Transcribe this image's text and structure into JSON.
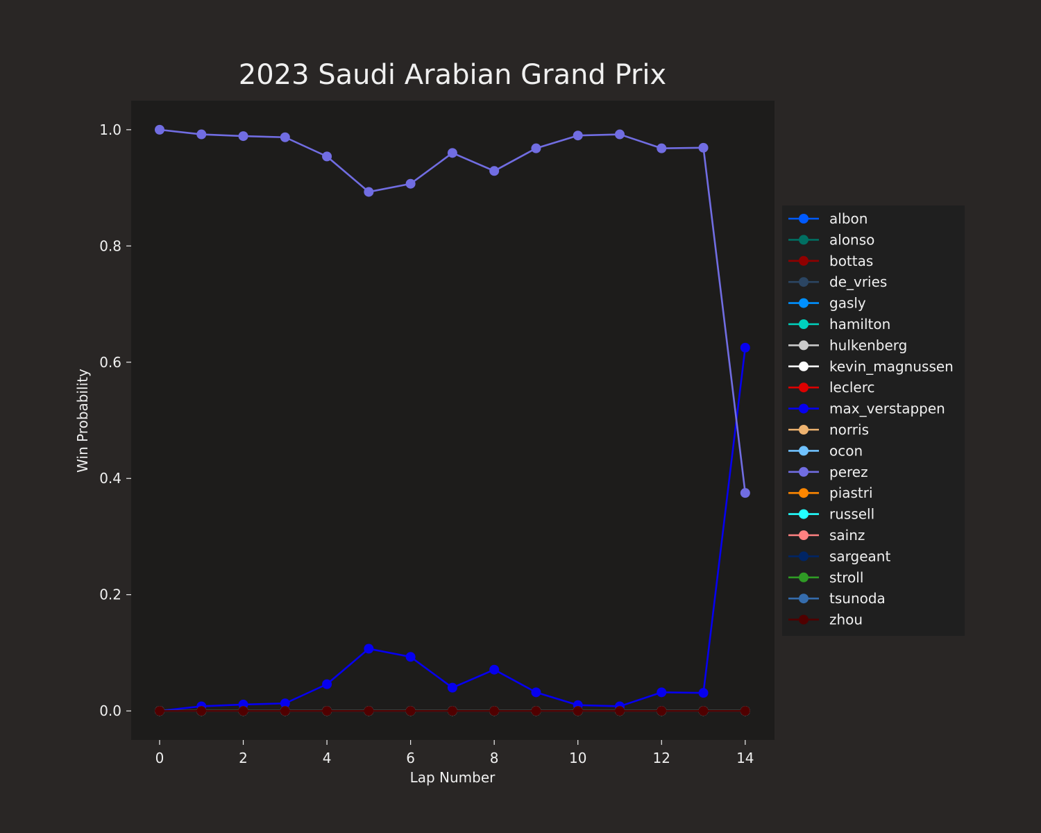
{
  "chart_data": {
    "type": "line",
    "title": "2023 Saudi Arabian Grand Prix",
    "xlabel": "Lap Number",
    "ylabel": "Win Probability",
    "xlim": [
      -0.68,
      14.7
    ],
    "ylim": [
      -0.05,
      1.05
    ],
    "xticks": [
      0,
      2,
      4,
      6,
      8,
      10,
      12,
      14
    ],
    "xtick_labels": [
      "0",
      "2",
      "4",
      "6",
      "8",
      "10",
      "12",
      "14"
    ],
    "yticks": [
      0.0,
      0.2,
      0.4,
      0.6,
      0.8,
      1.0
    ],
    "ytick_labels": [
      "0.0",
      "0.2",
      "0.4",
      "0.6",
      "0.8",
      "1.0"
    ],
    "grid": false,
    "legend_position": "right",
    "colors": {
      "figure_background": "#292625",
      "plot_background": "#1d1c1b",
      "legend_background": "#1f1f1f",
      "text": "#f0f0f0"
    },
    "x": [
      0,
      1,
      2,
      3,
      4,
      5,
      6,
      7,
      8,
      9,
      10,
      11,
      12,
      13,
      14
    ],
    "series": [
      {
        "name": "albon",
        "color": "#005aff",
        "values": [
          0,
          0,
          0,
          0,
          0,
          0,
          0,
          0,
          0,
          0,
          0,
          0,
          0,
          0,
          0
        ]
      },
      {
        "name": "alonso",
        "color": "#006f62",
        "values": [
          0,
          0,
          0,
          0,
          0,
          0,
          0,
          0,
          0,
          0,
          0,
          0,
          0,
          0,
          0
        ]
      },
      {
        "name": "bottas",
        "color": "#900000",
        "values": [
          0,
          0,
          0,
          0,
          0,
          0,
          0,
          0,
          0,
          0,
          0,
          0,
          0,
          0,
          0
        ]
      },
      {
        "name": "de_vries",
        "color": "#2b4562",
        "values": [
          0,
          0,
          0,
          0,
          0,
          0,
          0,
          0,
          0,
          0,
          0,
          0,
          0,
          0,
          0
        ]
      },
      {
        "name": "gasly",
        "color": "#0090ff",
        "values": [
          0,
          0,
          0,
          0,
          0,
          0,
          0,
          0,
          0,
          0,
          0,
          0,
          0,
          0,
          0
        ]
      },
      {
        "name": "hamilton",
        "color": "#00d2be",
        "values": [
          0,
          0,
          0,
          0,
          0,
          0,
          0,
          0,
          0,
          0,
          0,
          0,
          0,
          0,
          0
        ]
      },
      {
        "name": "hulkenberg",
        "color": "#cacaca",
        "values": [
          0,
          0,
          0,
          0,
          0,
          0,
          0,
          0,
          0,
          0,
          0,
          0,
          0,
          0,
          0
        ]
      },
      {
        "name": "kevin_magnussen",
        "color": "#ffffff",
        "values": [
          0,
          0,
          0,
          0,
          0,
          0,
          0,
          0,
          0,
          0,
          0,
          0,
          0,
          0,
          0
        ]
      },
      {
        "name": "leclerc",
        "color": "#dc0000",
        "values": [
          0,
          0,
          0,
          0,
          0,
          0,
          0,
          0,
          0,
          0,
          0,
          0,
          0,
          0,
          0
        ]
      },
      {
        "name": "max_verstappen",
        "color": "#0600ef",
        "values": [
          0,
          0.008,
          0.011,
          0.013,
          0.046,
          0.107,
          0.093,
          0.04,
          0.071,
          0.032,
          0.01,
          0.008,
          0.032,
          0.031,
          0.625
        ]
      },
      {
        "name": "norris",
        "color": "#eeb370",
        "values": [
          0,
          0,
          0,
          0,
          0,
          0,
          0,
          0,
          0,
          0,
          0,
          0,
          0,
          0,
          0
        ]
      },
      {
        "name": "ocon",
        "color": "#70c2ff",
        "values": [
          0,
          0,
          0,
          0,
          0,
          0,
          0,
          0,
          0,
          0,
          0,
          0,
          0,
          0,
          0
        ]
      },
      {
        "name": "perez",
        "color": "#716de2",
        "values": [
          1.0,
          0.992,
          0.989,
          0.987,
          0.954,
          0.893,
          0.907,
          0.96,
          0.929,
          0.968,
          0.99,
          0.992,
          0.968,
          0.969,
          0.375
        ]
      },
      {
        "name": "piastri",
        "color": "#ff8700",
        "values": [
          0,
          0,
          0,
          0,
          0,
          0,
          0,
          0,
          0,
          0,
          0,
          0,
          0,
          0,
          0
        ]
      },
      {
        "name": "russell",
        "color": "#24ffff",
        "values": [
          0,
          0,
          0,
          0,
          0,
          0,
          0,
          0,
          0,
          0,
          0,
          0,
          0,
          0,
          0
        ]
      },
      {
        "name": "sainz",
        "color": "#ff8181",
        "values": [
          0,
          0,
          0,
          0,
          0,
          0,
          0,
          0,
          0,
          0,
          0,
          0,
          0,
          0,
          0
        ]
      },
      {
        "name": "sargeant",
        "color": "#012564",
        "values": [
          0,
          0,
          0,
          0,
          0,
          0,
          0,
          0,
          0,
          0,
          0,
          0,
          0,
          0,
          0
        ]
      },
      {
        "name": "stroll",
        "color": "#2f9b25",
        "values": [
          0,
          0,
          0,
          0,
          0,
          0,
          0,
          0,
          0,
          0,
          0,
          0,
          0,
          0,
          0
        ]
      },
      {
        "name": "tsunoda",
        "color": "#356cac",
        "values": [
          0,
          0,
          0,
          0,
          0,
          0,
          0,
          0,
          0,
          0,
          0,
          0,
          0,
          0,
          0
        ]
      },
      {
        "name": "zhou",
        "color": "#500000",
        "values": [
          0,
          0,
          0,
          0,
          0,
          0,
          0,
          0,
          0,
          0,
          0,
          0,
          0,
          0,
          0
        ]
      }
    ]
  }
}
